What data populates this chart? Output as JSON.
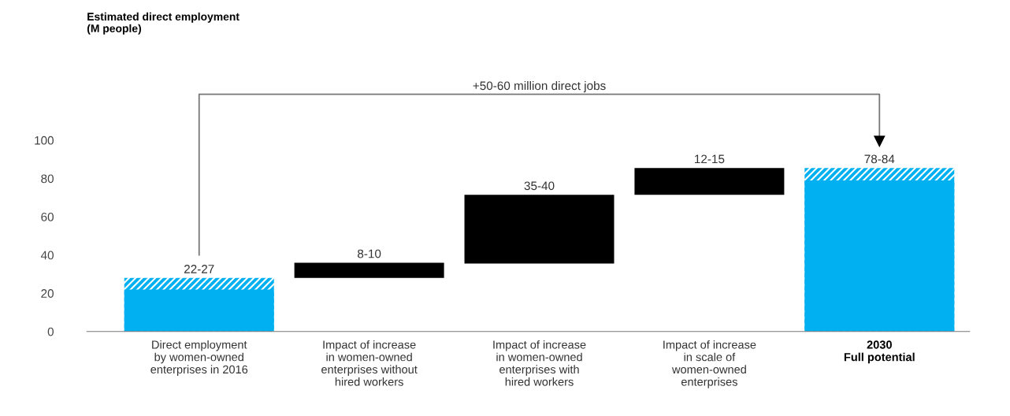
{
  "chart_data": {
    "type": "bar",
    "categories": [
      "Direct employment\nby women-owned\nenterprises in 2016",
      "Impact of increase\nin women-owned\nenterprises without\nhired workers",
      "Impact of increase\nin women-owned\nenterprises with\nhired workers",
      "Impact of increase\nin scale of\nwomen-owned\nenterprises",
      "2030\nFull potential"
    ],
    "series": [
      {
        "color": "#00b0f0",
        "values": [
          28,
          null,
          null,
          null,
          85.5
        ]
      },
      {
        "color": "#00b0f0",
        "values": [
          22,
          null,
          null,
          null,
          79
        ]
      },
      {
        "color": "#000000",
        "values": [
          null,
          8,
          36,
          14,
          null
        ],
        "base": [
          null,
          28,
          35.5,
          71.5,
          null
        ]
      }
    ],
    "value_labels": [
      "22-27",
      "8-10",
      "35-40",
      "12-15",
      "78-84"
    ],
    "annotations": [
      "Estimated direct employment\n(M people)",
      "+50-60 million direct jobs"
    ],
    "ylim": [
      0,
      100
    ],
    "yticks": [
      0,
      20,
      40,
      60,
      80,
      100
    ],
    "grid": false,
    "legend": false
  }
}
